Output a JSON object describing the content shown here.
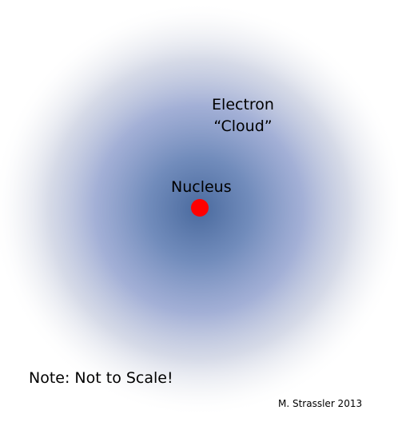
{
  "diagram": {
    "electron_cloud": {
      "line1": "Electron",
      "line2": "“Cloud”"
    },
    "nucleus": {
      "label": "Nucleus"
    },
    "note": "Note: Not to Scale!",
    "credit": "M. Strassler 2013"
  },
  "colors": {
    "background": "#ffffff",
    "cloud_core": "#4a6a9e",
    "cloud_mid": "#8c9ccc",
    "nucleus": "#ff0000",
    "text": "#000000"
  }
}
